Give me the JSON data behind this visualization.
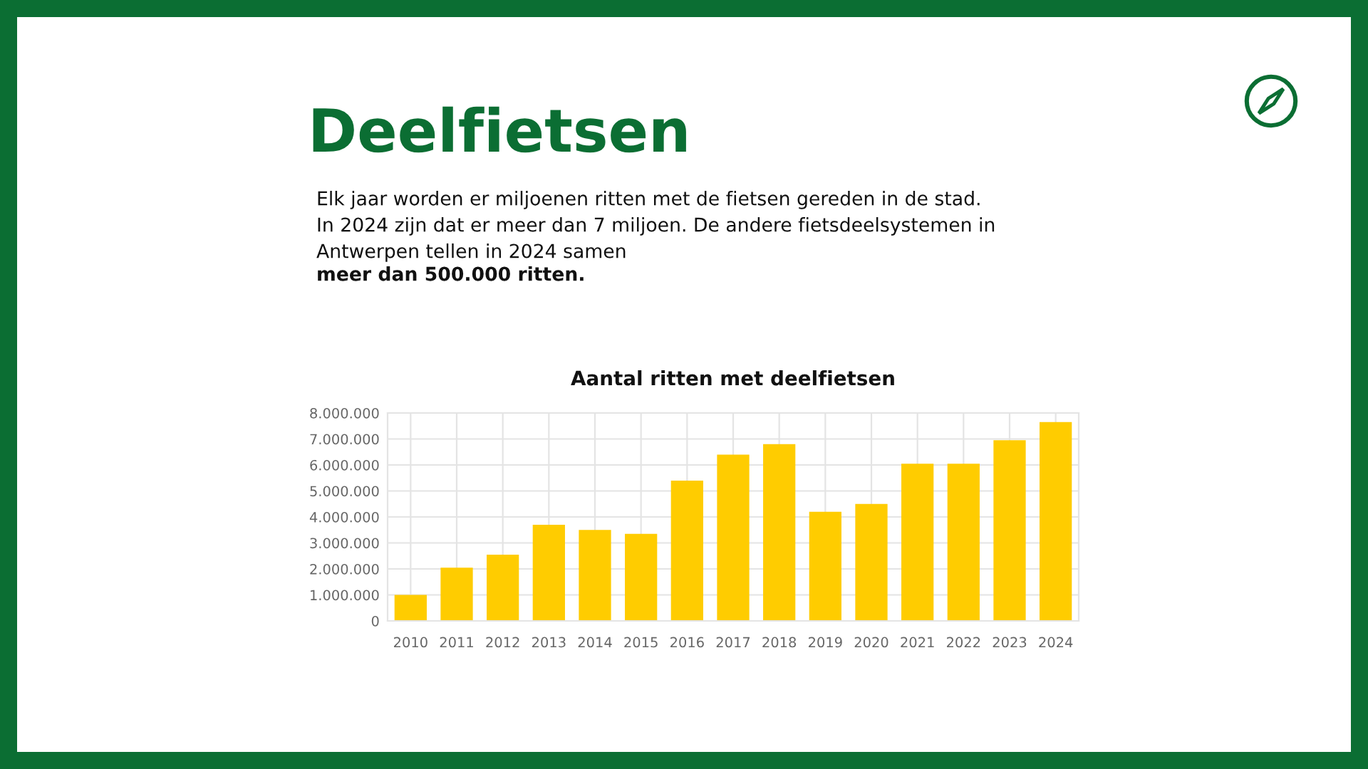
{
  "chart_data": {
    "type": "bar",
    "title": "Aantal ritten met deelfietsen",
    "annotations": [
      "Deelfietsen",
      "Elk jaar worden er miljoenen ritten met de fietsen gereden in de stad.\nIn 2024 zijn dat er meer dan 7 miljoen. De andere fietsdeelsystemen in\nAntwerpen tellen in 2024 samen",
      "meer dan 500.000 ritten."
    ],
    "categories": [
      "2010",
      "2011",
      "2012",
      "2013",
      "2014",
      "2015",
      "2016",
      "2017",
      "2018",
      "2019",
      "2020",
      "2021",
      "2022",
      "2023",
      "2024"
    ],
    "values": [
      1000000,
      2050000,
      2550000,
      3700000,
      3500000,
      3350000,
      5400000,
      6400000,
      6800000,
      4200000,
      4500000,
      6050000,
      6050000,
      6950000,
      7650000
    ],
    "color": "#ffcc00",
    "ylim": [
      0,
      8000000
    ],
    "yticks": [
      0,
      {
        "value": 1000000,
        "label": "1.000.000"
      },
      {
        "value": 2000000,
        "label": "2.000.000"
      },
      {
        "value": 3000000,
        "label": "3.000.000"
      },
      {
        "value": 4000000,
        "label": "4.000.000"
      },
      {
        "value": 5000000,
        "label": "5.000.000"
      },
      {
        "value": 6000000,
        "label": "6.000.000"
      },
      {
        "value": 7000000,
        "label": "7.000.000"
      },
      {
        "value": 8000000,
        "label": "8.000.000"
      }
    ],
    "grid": true
  }
}
